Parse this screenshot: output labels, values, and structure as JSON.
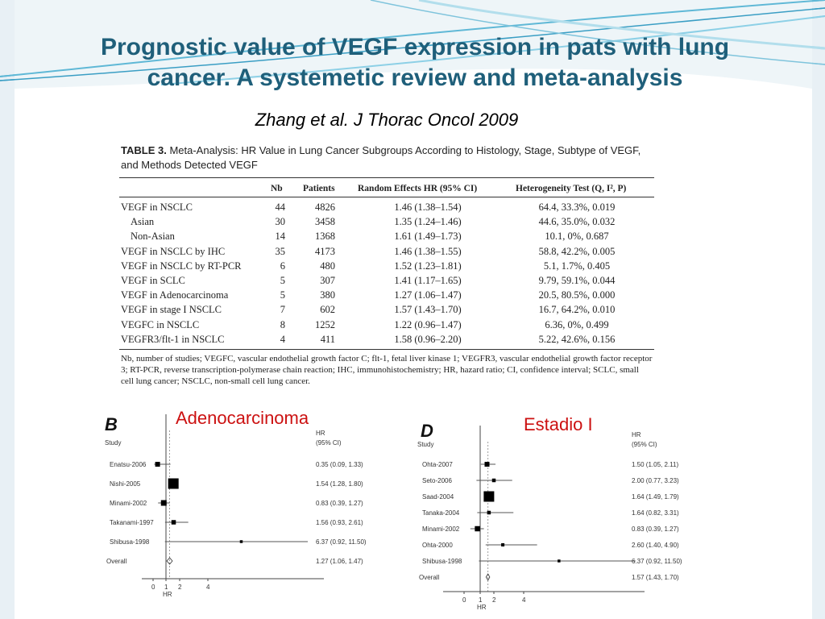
{
  "slide": {
    "title_line1": "Prognostic value of VEGF expression in pats with lung",
    "title_line2": "cancer. A systemetic review and meta-analysis",
    "citation": "Zhang et al. J Thorac Oncol 2009"
  },
  "table": {
    "caption_label": "TABLE 3.",
    "caption_text": "Meta-Analysis: HR Value in Lung Cancer Subgroups According to Histology, Stage, Subtype of VEGF, and Methods Detected VEGF",
    "headers": [
      "Nb",
      "Patients",
      "Random Effects HR (95% CI)",
      "Heterogeneity Test (Q, I², P)"
    ],
    "rows": [
      {
        "label": "VEGF in NSCLC",
        "nb": "44",
        "patients": "4826",
        "hr": "1.46 (1.38–1.54)",
        "het": "64.4, 33.3%, 0.019"
      },
      {
        "label": "Asian",
        "nb": "30",
        "patients": "3458",
        "hr": "1.35 (1.24–1.46)",
        "het": "44.6, 35.0%, 0.032"
      },
      {
        "label": "Non-Asian",
        "nb": "14",
        "patients": "1368",
        "hr": "1.61 (1.49–1.73)",
        "het": "10.1, 0%, 0.687"
      },
      {
        "label": "VEGF in NSCLC by IHC",
        "nb": "35",
        "patients": "4173",
        "hr": "1.46 (1.38–1.55)",
        "het": "58.8, 42.2%, 0.005"
      },
      {
        "label": "VEGF in NSCLC by RT-PCR",
        "nb": "6",
        "patients": "480",
        "hr": "1.52 (1.23–1.81)",
        "het": "5.1, 1.7%, 0.405"
      },
      {
        "label": "VEGF in SCLC",
        "nb": "5",
        "patients": "307",
        "hr": "1.41 (1.17–1.65)",
        "het": "9.79, 59.1%, 0.044"
      },
      {
        "label": "VEGF in Adenocarcinoma",
        "nb": "5",
        "patients": "380",
        "hr": "1.27 (1.06–1.47)",
        "het": "20.5, 80.5%, 0.000"
      },
      {
        "label": "VEGF in stage I NSCLC",
        "nb": "7",
        "patients": "602",
        "hr": "1.57 (1.43–1.70)",
        "het": "16.7, 64.2%, 0.010"
      },
      {
        "label": "VEGFC in NSCLC",
        "nb": "8",
        "patients": "1252",
        "hr": "1.22 (0.96–1.47)",
        "het": "6.36, 0%, 0.499"
      },
      {
        "label": "VEGFR3/flt-1 in NSCLC",
        "nb": "4",
        "patients": "411",
        "hr": "1.58 (0.96–2.20)",
        "het": "5.22, 42.6%, 0.156"
      }
    ],
    "footnote": "Nb, number of studies; VEGFC, vascular endothelial growth factor C; flt-1, fetal liver kinase 1; VEGFR3, vascular endothelial growth factor receptor 3; RT-PCR, reverse transcription-polymerase chain reaction; IHC, immunohistochemistry; HR, hazard ratio; CI, confidence interval; SCLC, small cell lung cancer; NSCLC, non-small cell lung cancer."
  },
  "chart_data": [
    {
      "type": "forest",
      "panel": "B",
      "title": "Adenocarcinoma",
      "study_header": "Study",
      "hr_header_1": "HR",
      "hr_header_2": "(95% CI)",
      "xlabel": "HR",
      "xticks": [
        "0",
        "1",
        "2",
        "4"
      ],
      "studies": [
        {
          "name": "Enatsu-2006",
          "hr": 0.35,
          "lo": 0.09,
          "hi": 1.33,
          "label": "0.35 (0.09, 1.33)",
          "weight": 0.3
        },
        {
          "name": "Nishi-2005",
          "hr": 1.54,
          "lo": 1.28,
          "hi": 1.8,
          "label": "1.54 (1.28, 1.80)",
          "weight": 1.0
        },
        {
          "name": "Minami-2002",
          "hr": 0.83,
          "lo": 0.39,
          "hi": 1.27,
          "label": "0.83 (0.39, 1.27)",
          "weight": 0.4
        },
        {
          "name": "Takanami-1997",
          "hr": 1.56,
          "lo": 0.93,
          "hi": 2.61,
          "label": "1.56 (0.93, 2.61)",
          "weight": 0.25
        },
        {
          "name": "Shibusa-1998",
          "hr": 6.37,
          "lo": 0.92,
          "hi": 11.5,
          "label": "6.37 (0.92, 11.50)",
          "weight": 0.05
        }
      ],
      "overall": {
        "name": "Overall",
        "hr": 1.27,
        "lo": 1.06,
        "hi": 1.47,
        "label": "1.27 (1.06, 1.47)"
      }
    },
    {
      "type": "forest",
      "panel": "D",
      "title": "Estadio I",
      "study_header": "Study",
      "hr_header_1": "HR",
      "hr_header_2": "(95% CI)",
      "xlabel": "HR",
      "xticks": [
        "0",
        "1",
        "2",
        "4"
      ],
      "studies": [
        {
          "name": "Ohta-2007",
          "hr": 1.5,
          "lo": 1.05,
          "hi": 2.11,
          "label": "1.50 (1.05, 2.11)",
          "weight": 0.3
        },
        {
          "name": "Seto-2006",
          "hr": 2.0,
          "lo": 0.77,
          "hi": 3.23,
          "label": "2.00 (0.77, 3.23)",
          "weight": 0.15
        },
        {
          "name": "Saad-2004",
          "hr": 1.64,
          "lo": 1.49,
          "hi": 1.79,
          "label": "1.64 (1.49, 1.79)",
          "weight": 1.0
        },
        {
          "name": "Tanaka-2004",
          "hr": 1.64,
          "lo": 0.82,
          "hi": 3.31,
          "label": "1.64 (0.82, 3.31)",
          "weight": 0.15
        },
        {
          "name": "Minami-2002",
          "hr": 0.83,
          "lo": 0.39,
          "hi": 1.27,
          "label": "0.83 (0.39, 1.27)",
          "weight": 0.35
        },
        {
          "name": "Ohta-2000",
          "hr": 2.6,
          "lo": 1.4,
          "hi": 4.9,
          "label": "2.60 (1.40, 4.90)",
          "weight": 0.1
        },
        {
          "name": "Shibusa-1998",
          "hr": 6.37,
          "lo": 0.92,
          "hi": 11.5,
          "label": "6.37 (0.92, 11.50)",
          "weight": 0.05
        }
      ],
      "overall": {
        "name": "Overall",
        "hr": 1.57,
        "lo": 1.43,
        "hi": 1.7,
        "label": "1.57 (1.43, 1.70)"
      }
    }
  ]
}
